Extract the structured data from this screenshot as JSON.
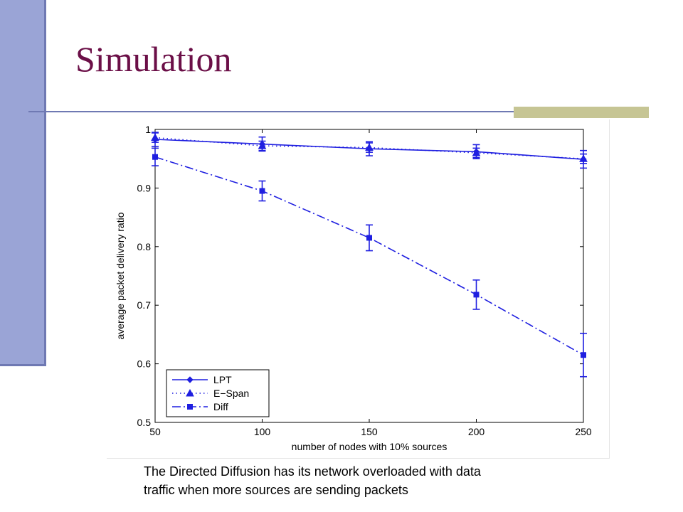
{
  "slide": {
    "title": "Simulation",
    "caption_line1": "The Directed Diffusion has its network overloaded with data",
    "caption_line2": "traffic when more sources are sending packets",
    "colors": {
      "title": "#6b0f47",
      "sidebar": "#9aa4d6",
      "rule": "#6f79b3",
      "accent": "#c6c594",
      "series": "#1f1fe0"
    }
  },
  "chart_data": {
    "type": "line",
    "xlabel": "number of nodes with 10% sources",
    "ylabel": "average packet delivery ratio",
    "xlim": [
      50,
      250
    ],
    "ylim": [
      0.5,
      1
    ],
    "x_ticks": [
      "50",
      "100",
      "150",
      "200",
      "250"
    ],
    "y_ticks": [
      "0.5",
      "0.6",
      "0.7",
      "0.8",
      "0.9",
      "1"
    ],
    "x": [
      50,
      100,
      150,
      200,
      250
    ],
    "legend_position": "bottom-left",
    "grid": false,
    "series": [
      {
        "name": "LPT",
        "values": [
          0.983,
          0.975,
          0.967,
          0.962,
          0.949
        ],
        "error": [
          0.012,
          0.012,
          0.012,
          0.012,
          0.015
        ],
        "line": "solid",
        "marker": "diamond"
      },
      {
        "name": "E−Span",
        "values": [
          0.986,
          0.972,
          0.969,
          0.96,
          0.95
        ],
        "error": [
          0.008,
          0.008,
          0.008,
          0.008,
          0.008
        ],
        "line": "dotted",
        "marker": "triangle"
      },
      {
        "name": "Diff",
        "values": [
          0.953,
          0.895,
          0.815,
          0.718,
          0.615
        ],
        "error": [
          0.015,
          0.017,
          0.022,
          0.025,
          0.037
        ],
        "line": "dashdot",
        "marker": "square"
      }
    ]
  }
}
